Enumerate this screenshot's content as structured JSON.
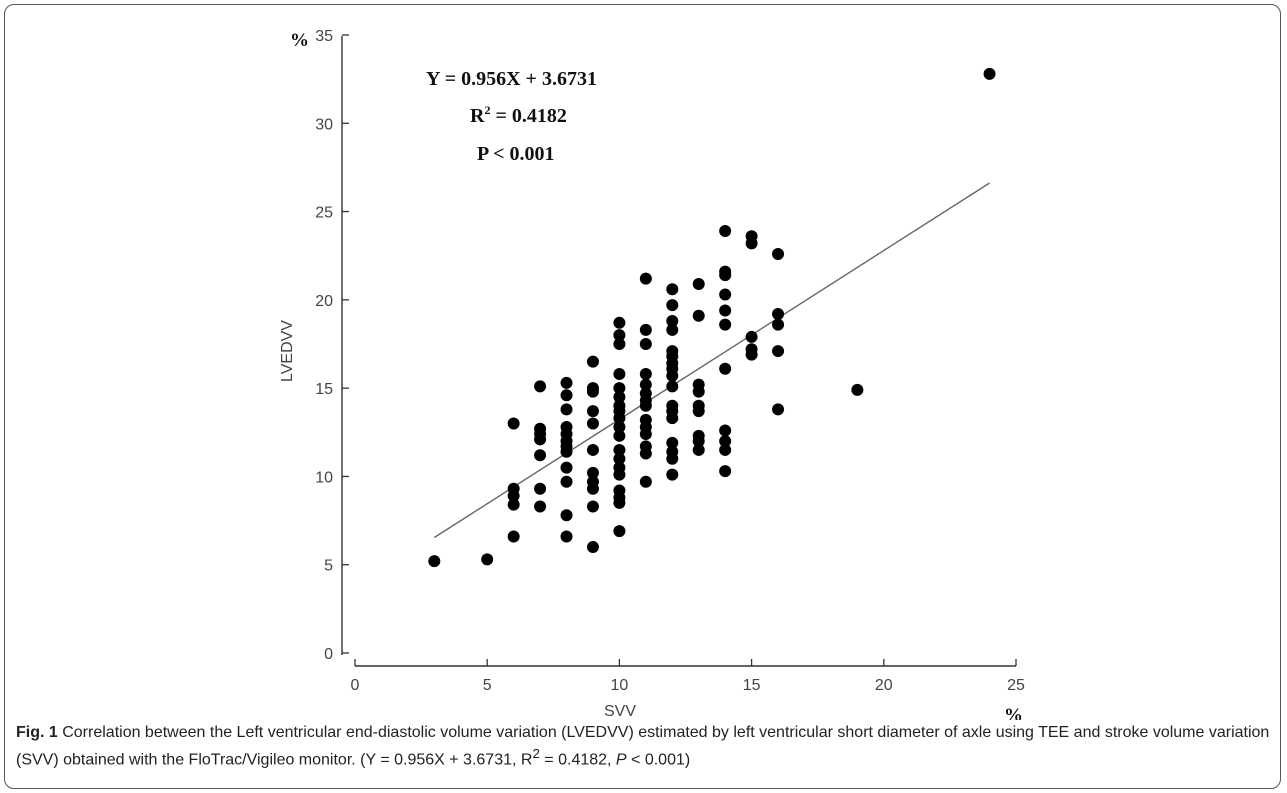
{
  "chart_data": {
    "type": "scatter",
    "xlabel": "SVV",
    "ylabel": "LVEDVV",
    "x_unit": "%",
    "y_unit": "%",
    "xlim": [
      0,
      25
    ],
    "ylim": [
      0,
      35
    ],
    "x_ticks": [
      "0",
      "5",
      "10",
      "15",
      "20",
      "25"
    ],
    "y_ticks": [
      "0",
      "5",
      "10",
      "15",
      "20",
      "25",
      "30",
      "35"
    ],
    "regression": {
      "slope": 0.956,
      "intercept": 3.6731,
      "x_range": [
        3,
        24
      ]
    },
    "annotations": [
      "Y = 0.956X + 3.6731",
      "R",
      "2",
      " = 0.4182",
      "P < 0.001"
    ],
    "points": [
      [
        3,
        5.2
      ],
      [
        5,
        5.3
      ],
      [
        6,
        13.0
      ],
      [
        6,
        9.3
      ],
      [
        6,
        8.9
      ],
      [
        6,
        8.4
      ],
      [
        6,
        6.6
      ],
      [
        7,
        15.1
      ],
      [
        7,
        12.7
      ],
      [
        7,
        12.4
      ],
      [
        7,
        12.1
      ],
      [
        7,
        11.2
      ],
      [
        7,
        9.3
      ],
      [
        7,
        8.3
      ],
      [
        8,
        15.3
      ],
      [
        8,
        14.6
      ],
      [
        8,
        13.8
      ],
      [
        8,
        12.8
      ],
      [
        8,
        12.4
      ],
      [
        8,
        12.0
      ],
      [
        8,
        11.7
      ],
      [
        8,
        11.4
      ],
      [
        8,
        10.5
      ],
      [
        8,
        9.7
      ],
      [
        8,
        7.8
      ],
      [
        8,
        6.6
      ],
      [
        9,
        16.5
      ],
      [
        9,
        15.0
      ],
      [
        9,
        14.8
      ],
      [
        9,
        13.7
      ],
      [
        9,
        13.0
      ],
      [
        9,
        11.5
      ],
      [
        9,
        10.2
      ],
      [
        9,
        9.7
      ],
      [
        9,
        9.3
      ],
      [
        9,
        8.3
      ],
      [
        9,
        6.0
      ],
      [
        10,
        18.7
      ],
      [
        10,
        18.0
      ],
      [
        10,
        17.5
      ],
      [
        10,
        15.8
      ],
      [
        10,
        15.0
      ],
      [
        10,
        14.5
      ],
      [
        10,
        14.0
      ],
      [
        10,
        13.7
      ],
      [
        10,
        13.3
      ],
      [
        10,
        12.8
      ],
      [
        10,
        12.3
      ],
      [
        10,
        11.5
      ],
      [
        10,
        11.0
      ],
      [
        10,
        10.5
      ],
      [
        10,
        10.1
      ],
      [
        10,
        9.2
      ],
      [
        10,
        8.8
      ],
      [
        10,
        8.5
      ],
      [
        10,
        6.9
      ],
      [
        11,
        21.2
      ],
      [
        11,
        18.3
      ],
      [
        11,
        17.5
      ],
      [
        11,
        15.8
      ],
      [
        11,
        15.2
      ],
      [
        11,
        14.7
      ],
      [
        11,
        14.3
      ],
      [
        11,
        14.0
      ],
      [
        11,
        13.2
      ],
      [
        11,
        12.8
      ],
      [
        11,
        12.4
      ],
      [
        11,
        11.7
      ],
      [
        11,
        11.3
      ],
      [
        11,
        9.7
      ],
      [
        12,
        20.6
      ],
      [
        12,
        19.7
      ],
      [
        12,
        18.8
      ],
      [
        12,
        18.3
      ],
      [
        12,
        17.1
      ],
      [
        12,
        16.8
      ],
      [
        12,
        16.4
      ],
      [
        12,
        16.1
      ],
      [
        12,
        15.7
      ],
      [
        12,
        15.1
      ],
      [
        12,
        14.0
      ],
      [
        12,
        13.7
      ],
      [
        12,
        13.3
      ],
      [
        12,
        11.9
      ],
      [
        12,
        11.4
      ],
      [
        12,
        11.0
      ],
      [
        12,
        10.1
      ],
      [
        13,
        20.9
      ],
      [
        13,
        19.1
      ],
      [
        13,
        15.2
      ],
      [
        13,
        14.8
      ],
      [
        13,
        14.0
      ],
      [
        13,
        13.7
      ],
      [
        13,
        12.3
      ],
      [
        13,
        12.0
      ],
      [
        13,
        11.5
      ],
      [
        14,
        23.9
      ],
      [
        14,
        21.6
      ],
      [
        14,
        21.4
      ],
      [
        14,
        20.3
      ],
      [
        14,
        19.4
      ],
      [
        14,
        18.6
      ],
      [
        14,
        16.1
      ],
      [
        14,
        12.6
      ],
      [
        14,
        12.0
      ],
      [
        14,
        11.5
      ],
      [
        14,
        10.3
      ],
      [
        15,
        23.6
      ],
      [
        15,
        23.2
      ],
      [
        15,
        17.9
      ],
      [
        15,
        17.2
      ],
      [
        15,
        16.9
      ],
      [
        16,
        22.6
      ],
      [
        16,
        19.2
      ],
      [
        16,
        18.6
      ],
      [
        16,
        17.1
      ],
      [
        16,
        13.8
      ],
      [
        19,
        14.9
      ],
      [
        24,
        32.8
      ]
    ]
  },
  "caption": {
    "lead": "Fig. 1",
    "body": " Correlation between the Left ventricular end-diastolic volume variation (LVEDVV) estimated by left ventricular short diameter of axle using TEE and stroke volume variation (SVV) obtained with the FloTrac/Vigileo monitor. (Y = 0.956X + 3.6731, R",
    "sup": "2",
    "mid": " = 0.4182, ",
    "italic": "P",
    "end": " < 0.001)"
  }
}
